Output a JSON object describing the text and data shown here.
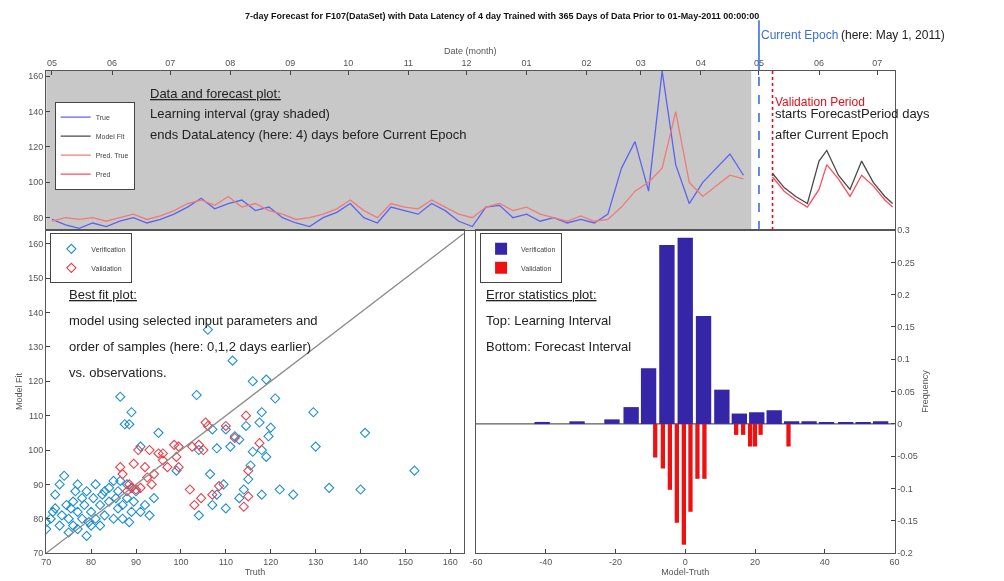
{
  "chart_data": [
    {
      "type": "line",
      "title": "7-day Forecast for F107(DataSet) with Data Latency of 4 day Trained with 365 Days of Data Prior to 01-May-2011 00:00:00",
      "xlabel": "Date (month)",
      "legend": "left",
      "grid": false,
      "xlim": [
        "2010-04-28",
        "2011-07-10"
      ],
      "xticks": [
        {
          "value": "2010-05-01",
          "label": "05"
        },
        {
          "value": "2010-06-01",
          "label": "06"
        },
        {
          "value": "2010-07-01",
          "label": "07"
        },
        {
          "value": "2010-08-01",
          "label": "08"
        },
        {
          "value": "2010-09-01",
          "label": "09"
        },
        {
          "value": "2010-10-01",
          "label": "10"
        },
        {
          "value": "2010-11-01",
          "label": "11"
        },
        {
          "value": "2010-12-01",
          "label": "12"
        },
        {
          "value": "2011-01-01",
          "label": "01"
        },
        {
          "value": "2011-02-01",
          "label": "02"
        },
        {
          "value": "2011-03-01",
          "label": "03"
        },
        {
          "value": "2011-04-01",
          "label": "04"
        },
        {
          "value": "2011-05-01",
          "label": "05"
        },
        {
          "value": "2011-06-01",
          "label": "06"
        },
        {
          "value": "2011-07-01",
          "label": "07"
        }
      ],
      "ylim": [
        73,
        163
      ],
      "yticks": [
        80,
        100,
        120,
        140,
        160
      ],
      "series": [
        {
          "name": "True",
          "color": "#5a63f0",
          "x": [
            "2010-05-01",
            "2010-05-08",
            "2010-05-15",
            "2010-05-22",
            "2010-05-29",
            "2010-06-05",
            "2010-06-12",
            "2010-06-19",
            "2010-06-26",
            "2010-07-03",
            "2010-07-10",
            "2010-07-17",
            "2010-07-24",
            "2010-07-31",
            "2010-08-07",
            "2010-08-14",
            "2010-08-21",
            "2010-08-28",
            "2010-09-04",
            "2010-09-11",
            "2010-09-18",
            "2010-09-25",
            "2010-10-02",
            "2010-10-09",
            "2010-10-16",
            "2010-10-23",
            "2010-10-30",
            "2010-11-06",
            "2010-11-13",
            "2010-11-20",
            "2010-11-27",
            "2010-12-04",
            "2010-12-11",
            "2010-12-18",
            "2010-12-25",
            "2011-01-01",
            "2011-01-08",
            "2011-01-15",
            "2011-01-22",
            "2011-01-29",
            "2011-02-05",
            "2011-02-12",
            "2011-02-19",
            "2011-02-26",
            "2011-03-05",
            "2011-03-12",
            "2011-03-19",
            "2011-03-26",
            "2011-04-02",
            "2011-04-09",
            "2011-04-16",
            "2011-04-23"
          ],
          "values": [
            79,
            76,
            74,
            77,
            75,
            78,
            80,
            77,
            79,
            82,
            86,
            91,
            85,
            88,
            90,
            84,
            86,
            80,
            77,
            75,
            80,
            83,
            88,
            80,
            77,
            86,
            84,
            82,
            88,
            84,
            78,
            75,
            86,
            87,
            80,
            82,
            78,
            80,
            77,
            79,
            77,
            82,
            108,
            123,
            95,
            163,
            110,
            88,
            100,
            108,
            116,
            104
          ]
        },
        {
          "name": "Model Fit",
          "color": "#4a4a4a",
          "x": [
            "2011-05-08",
            "2011-05-14",
            "2011-05-20",
            "2011-05-26",
            "2011-06-01",
            "2011-06-05",
            "2011-06-11",
            "2011-06-17",
            "2011-06-23",
            "2011-06-29",
            "2011-07-05",
            "2011-07-09"
          ],
          "values": [
            105,
            97,
            92,
            88,
            112,
            118,
            104,
            96,
            112,
            100,
            92,
            88
          ]
        },
        {
          "name": "Pred. True",
          "color": "#f07a7a",
          "x": [
            "2010-05-01",
            "2010-05-08",
            "2010-05-15",
            "2010-05-22",
            "2010-05-29",
            "2010-06-05",
            "2010-06-12",
            "2010-06-19",
            "2010-06-26",
            "2010-07-03",
            "2010-07-10",
            "2010-07-17",
            "2010-07-24",
            "2010-07-31",
            "2010-08-07",
            "2010-08-14",
            "2010-08-21",
            "2010-08-28",
            "2010-09-04",
            "2010-09-11",
            "2010-09-18",
            "2010-09-25",
            "2010-10-02",
            "2010-10-09",
            "2010-10-16",
            "2010-10-23",
            "2010-10-30",
            "2010-11-06",
            "2010-11-13",
            "2010-11-20",
            "2010-11-27",
            "2010-12-04",
            "2010-12-11",
            "2010-12-18",
            "2010-12-25",
            "2011-01-01",
            "2011-01-08",
            "2011-01-15",
            "2011-01-22",
            "2011-01-29",
            "2011-02-05",
            "2011-02-12",
            "2011-02-19",
            "2011-02-26",
            "2011-03-05",
            "2011-03-12",
            "2011-03-19",
            "2011-03-26",
            "2011-04-02",
            "2011-04-09",
            "2011-04-16",
            "2011-04-23"
          ],
          "values": [
            78,
            80,
            79,
            80,
            78,
            80,
            82,
            79,
            81,
            84,
            88,
            90,
            87,
            92,
            86,
            88,
            84,
            82,
            79,
            80,
            82,
            85,
            90,
            84,
            80,
            88,
            86,
            85,
            90,
            86,
            82,
            80,
            86,
            88,
            84,
            86,
            82,
            80,
            78,
            81,
            78,
            79,
            86,
            95,
            100,
            108,
            140,
            100,
            92,
            98,
            104,
            102
          ]
        },
        {
          "name": "Pred",
          "color": "#ff4b5a",
          "x": [
            "2011-05-08",
            "2011-05-14",
            "2011-05-20",
            "2011-05-26",
            "2011-06-01",
            "2011-06-05",
            "2011-06-11",
            "2011-06-17",
            "2011-06-23",
            "2011-06-29",
            "2011-07-05",
            "2011-07-09"
          ],
          "values": [
            103,
            95,
            90,
            86,
            96,
            110,
            102,
            92,
            104,
            98,
            90,
            86
          ]
        }
      ],
      "bands": [
        {
          "axis": "x",
          "from": "2010-04-28",
          "to": "2011-04-27",
          "color": "#c8c8c8"
        }
      ],
      "ref_lines": [
        {
          "axis": "x",
          "value": "2011-05-01",
          "label": "Current Epoch",
          "color": "#3a6fd8",
          "line_style": "dashed"
        },
        {
          "axis": "x",
          "value": "2011-05-08",
          "label": "Validation Period",
          "color": "#e0101a",
          "line_style": "dotted"
        }
      ],
      "annotations": [
        "Data and forecast plot:",
        "Learning interval (gray shaded)",
        "ends DataLatency (here: 4) days before Current Epoch",
        "(here: May 1, 2011)",
        "starts ForecastPeriod days",
        "after Current Epoch"
      ]
    },
    {
      "type": "scatter",
      "xlabel": "Truth",
      "ylabel": "Model Fit",
      "legend": "top left",
      "grid": false,
      "xlim": [
        70,
        163
      ],
      "xticks": [
        70,
        80,
        90,
        100,
        110,
        120,
        130,
        140,
        150,
        160
      ],
      "ylim": [
        70,
        164
      ],
      "yticks": [
        70,
        80,
        90,
        100,
        110,
        120,
        130,
        140,
        150,
        160
      ],
      "series": [
        {
          "name": "Verification",
          "color": "#1f8fd0",
          "marker": "diamond",
          "x": [
            106,
            111.5,
            116,
            119,
            121,
            86.5,
            103.5,
            89,
            87.5,
            88.5,
            129.5,
            141,
            152,
            130,
            122,
            125,
            133,
            140,
            118,
            104,
            110,
            107,
            113,
            108,
            109.5,
            106.5,
            114,
            115,
            115.5,
            116,
            118,
            119,
            119.5,
            120,
            117.5,
            118,
            112,
            111,
            113,
            114.5,
            108,
            104,
            95,
            91,
            99,
            107,
            110,
            70,
            70,
            71,
            71.5,
            72,
            73,
            73,
            74,
            74.5,
            75,
            75,
            76,
            76,
            76.5,
            77,
            77,
            78,
            78,
            78.5,
            79,
            79,
            80,
            80,
            80.5,
            81,
            82,
            82,
            82.5,
            83,
            84,
            84,
            85,
            85,
            85.5,
            86,
            86,
            87,
            87,
            88,
            88,
            89,
            89.5,
            90,
            91,
            92,
            93,
            94,
            83,
            81,
            77,
            72,
            73.5,
            75.5,
            79.5,
            86.5,
            88.5
          ],
          "values": [
            135,
            126,
            120,
            120.5,
            115,
            115.5,
            116,
            111,
            107.5,
            107.5,
            111,
            105,
            94,
            101,
            88.5,
            87,
            89,
            88.5,
            87,
            81,
            83,
            84,
            86,
            87,
            90,
            93,
            88.5,
            91.5,
            95.5,
            99.5,
            100,
            98,
            104,
            106.5,
            108,
            111,
            104,
            101,
            103,
            107,
            100.5,
            100,
            105,
            101,
            94,
            106,
            106,
            79,
            77,
            80,
            82,
            83,
            78,
            90,
            92.5,
            84,
            76,
            80,
            78,
            85,
            88,
            77,
            82,
            80,
            86,
            84,
            75,
            88,
            78,
            82,
            86,
            80,
            84,
            78,
            87,
            81,
            85,
            89,
            80,
            91,
            86,
            83,
            88,
            84,
            80,
            86,
            90,
            82,
            85,
            88,
            82,
            84,
            81,
            86,
            88,
            90,
            90,
            87,
            81,
            83,
            79,
            91,
            79
          ]
        },
        {
          "name": "Validation",
          "color": "#e8404a",
          "marker": "diamond",
          "x": [
            86.5,
            87,
            88,
            88.5,
            89,
            89.5,
            90,
            90.5,
            91,
            92,
            92.5,
            93,
            93.5,
            94,
            95,
            96,
            96,
            97,
            98.5,
            99,
            99.5,
            99.5,
            102,
            102.5,
            103,
            104,
            104.5,
            105,
            105.5,
            106,
            107,
            108.5,
            110,
            112,
            114,
            114.5,
            115,
            115,
            117.5
          ],
          "values": [
            95,
            93,
            88,
            90,
            89,
            96,
            88.5,
            100,
            89,
            95,
            92,
            100,
            90,
            93,
            99,
            99,
            97,
            95,
            101.5,
            98,
            95,
            101,
            88.5,
            101,
            84,
            101.5,
            86,
            100,
            108,
            107,
            87,
            89.5,
            107,
            103.5,
            83.5,
            110,
            86.5,
            94,
            102
          ]
        },
        {
          "type": "line",
          "color": "#8c8c8c",
          "x": [
            70,
            163
          ],
          "values": [
            70,
            163
          ]
        }
      ],
      "annotations": [
        "Best fit plot:",
        "model using selected input parameters and",
        "order of samples (here: 0,1,2 days earlier)",
        "vs. observations."
      ]
    },
    {
      "type": "bar",
      "xlabel": "Model-Truth",
      "ylabel": "Frequency",
      "legend": "top left",
      "grid": false,
      "xlim": [
        -60,
        60
      ],
      "xticks": [
        -60,
        -40,
        -20,
        0,
        20,
        40,
        60
      ],
      "ylim": [
        -0.2,
        0.3
      ],
      "yticks": [
        -0.2,
        -0.15,
        -0.1,
        -0.05,
        0,
        0.05,
        0.1,
        0.15,
        0.2,
        0.25,
        0.3
      ],
      "series": [
        {
          "name": "Verification",
          "color": "#3526a8",
          "x": [
            -41,
            -31,
            -21,
            -15.5,
            -10.5,
            -5.25,
            0,
            5.25,
            10.5,
            15.5,
            20.5,
            25.5,
            30.5,
            35.5,
            40.5,
            46,
            51,
            56
          ],
          "values": [
            0.003,
            0.004,
            0.007,
            0.026,
            0.086,
            0.277,
            0.288,
            0.167,
            0.053,
            0.016,
            0.018,
            0.021,
            0.004,
            0.004,
            0.003,
            0.003,
            0.003,
            0.004
          ]
        },
        {
          "name": "Validation",
          "color": "#ee1111",
          "x": [
            -8.6,
            -6.4,
            -4.4,
            -2.4,
            -0.4,
            1.5,
            3.5,
            5.5,
            14.6,
            16.6,
            18.6,
            20,
            21.6,
            29.6
          ],
          "values": [
            -0.052,
            -0.069,
            -0.102,
            -0.153,
            -0.187,
            -0.136,
            -0.085,
            -0.085,
            -0.017,
            -0.017,
            -0.035,
            -0.035,
            -0.017,
            -0.035
          ]
        }
      ],
      "ref_lines": [
        {
          "axis": "y",
          "value": 0,
          "color": "#333333",
          "line_style": "solid"
        }
      ],
      "annotations": [
        "Error statistics plot:",
        "Top: Learning Interval",
        "Bottom: Forecast Interval"
      ]
    }
  ]
}
